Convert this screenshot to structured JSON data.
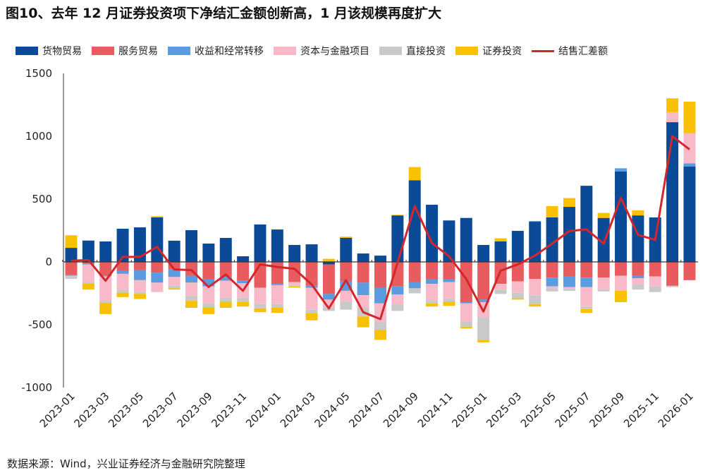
{
  "title": "图10、去年 12 月证券投资项下净结汇金额创新高，1 月该规模再度扩大",
  "source": "数据来源：Wind，兴业证券经济与金融研究院整理",
  "chart_data": {
    "type": "bar",
    "stacked": true,
    "ylim": [
      -1000,
      1500
    ],
    "yticks": [
      -1000,
      -500,
      0,
      500,
      1000,
      1500
    ],
    "legend_position": "top",
    "categories": [
      "2023-01",
      "2023-02",
      "2023-03",
      "2023-04",
      "2023-05",
      "2023-06",
      "2023-07",
      "2023-08",
      "2023-09",
      "2023-10",
      "2023-11",
      "2023-12",
      "2024-01",
      "2024-02",
      "2024-03",
      "2024-04",
      "2024-05",
      "2024-06",
      "2024-07",
      "2024-08",
      "2024-09",
      "2024-10",
      "2024-11",
      "2024-12",
      "2025-01",
      "2025-02",
      "2025-03",
      "2025-04",
      "2025-05",
      "2025-06",
      "2025-07",
      "2025-08",
      "2025-09",
      "2025-10",
      "2025-11",
      "2025-12",
      "2026-01"
    ],
    "xtick_labels": [
      "2023-01",
      "2023-03",
      "2023-05",
      "2023-07",
      "2023-09",
      "2023-11",
      "2024-01",
      "2024-03",
      "2024-05",
      "2024-07",
      "2024-09",
      "2024-11",
      "2025-01",
      "2025-03",
      "2025-05",
      "2025-07",
      "2025-09",
      "2025-11",
      "2026-01"
    ],
    "series": [
      {
        "name": "货物贸易",
        "kind": "bar",
        "color": "#0b4a96",
        "values": [
          112,
          170,
          163,
          264,
          275,
          354,
          169,
          253,
          146,
          191,
          45,
          298,
          258,
          135,
          140,
          -20,
          191,
          67,
          50,
          370,
          650,
          455,
          330,
          350,
          135,
          163,
          247,
          320,
          354,
          438,
          606,
          350,
          720,
          370,
          354,
          1112,
          760
        ]
      },
      {
        "name": "服务贸易",
        "kind": "bar",
        "color": "#e85b5f",
        "values": [
          -105,
          -15,
          -110,
          -70,
          -65,
          -85,
          -60,
          -110,
          -140,
          -120,
          -150,
          -205,
          -175,
          -160,
          -190,
          -235,
          -155,
          -165,
          -205,
          -195,
          -160,
          -140,
          -140,
          -320,
          -300,
          -175,
          -155,
          -135,
          -125,
          -115,
          -125,
          -125,
          -110,
          -110,
          -115,
          -190,
          -145
        ]
      },
      {
        "name": "收益和经常转移",
        "kind": "bar",
        "color": "#5b9be0",
        "values": [
          -5,
          -5,
          -5,
          -25,
          -80,
          -80,
          -60,
          -55,
          -55,
          -30,
          -20,
          0,
          -10,
          0,
          -15,
          -45,
          -75,
          -100,
          -125,
          -65,
          -50,
          -35,
          -20,
          -10,
          -20,
          0,
          0,
          5,
          -70,
          -85,
          -75,
          0,
          25,
          -20,
          0,
          0,
          25
        ]
      },
      {
        "name": "资本与金融项目",
        "kind": "bar",
        "color": "#f8b9c9",
        "values": [
          -10,
          -140,
          -190,
          -125,
          -95,
          -75,
          -70,
          -105,
          -135,
          -135,
          -115,
          -130,
          -150,
          -25,
          -175,
          -60,
          -85,
          -100,
          -150,
          -80,
          0,
          -130,
          -130,
          -145,
          -120,
          -45,
          -90,
          -130,
          -15,
          -15,
          -155,
          -90,
          -120,
          -50,
          -80,
          80,
          240
        ]
      },
      {
        "name": "直接投资",
        "kind": "bar",
        "color": "#c9c9c9",
        "values": [
          -15,
          -10,
          -20,
          -25,
          -15,
          0,
          -20,
          -40,
          -30,
          -30,
          -35,
          -35,
          -30,
          -10,
          -30,
          -30,
          -65,
          -70,
          -60,
          -50,
          -40,
          -25,
          -25,
          -40,
          -180,
          -35,
          -45,
          -70,
          -25,
          -15,
          -20,
          -20,
          0,
          -40,
          -45,
          -10,
          0
        ]
      },
      {
        "name": "证券投资",
        "kind": "bar",
        "color": "#f9c103",
        "values": [
          100,
          -50,
          -90,
          -35,
          -40,
          10,
          -10,
          -55,
          -55,
          -50,
          -35,
          -30,
          -40,
          -10,
          -55,
          25,
          10,
          -85,
          -80,
          5,
          105,
          -25,
          -35,
          -15,
          -20,
          25,
          -10,
          -20,
          90,
          70,
          -30,
          40,
          -90,
          40,
          0,
          110,
          250
        ]
      },
      {
        "name": "结售汇差额",
        "kind": "line",
        "color": "#d3272c",
        "values": [
          10,
          15,
          -150,
          40,
          40,
          120,
          -60,
          -65,
          -200,
          -100,
          -230,
          -20,
          -40,
          -55,
          -180,
          -370,
          -145,
          -400,
          -455,
          -5,
          445,
          150,
          45,
          -135,
          -395,
          -70,
          -20,
          50,
          145,
          245,
          260,
          145,
          510,
          215,
          175,
          1000,
          895
        ]
      }
    ]
  }
}
